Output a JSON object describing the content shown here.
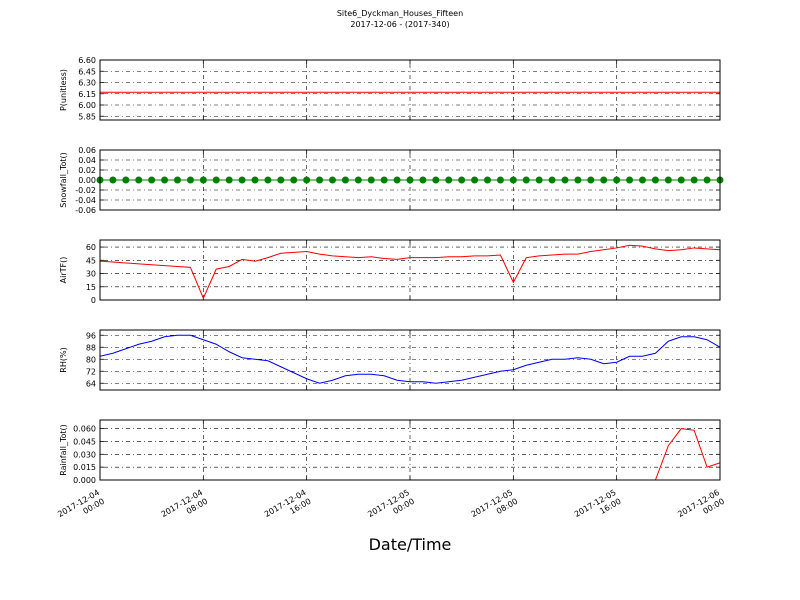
{
  "chart_data": [
    {
      "type": "line",
      "title": "Site6_Dyckman_Houses_Fifteen",
      "subtitle": "2017-12-06 - (2017-340)",
      "ylabel": "P(unitless)",
      "grid": true,
      "xlim": [
        "2017-12-04 00:00",
        "2017-12-06 00:00"
      ],
      "ylim": [
        5.8,
        6.6
      ],
      "yticks": [
        {
          "value": 5.85,
          "label": "5.85"
        },
        {
          "value": 6.0,
          "label": "6.00"
        },
        {
          "value": 6.15,
          "label": "6.15"
        },
        {
          "value": 6.3,
          "label": "6.30"
        },
        {
          "value": 6.45,
          "label": "6.45"
        },
        {
          "value": 6.6,
          "label": "6.60"
        }
      ],
      "x": [
        "2017-12-04 00:00",
        "2017-12-04 01:00",
        "2017-12-04 02:00",
        "2017-12-04 03:00",
        "2017-12-04 04:00",
        "2017-12-04 05:00",
        "2017-12-04 06:00",
        "2017-12-04 07:00",
        "2017-12-04 08:00",
        "2017-12-04 09:00",
        "2017-12-04 10:00",
        "2017-12-04 11:00",
        "2017-12-04 12:00",
        "2017-12-04 13:00",
        "2017-12-04 14:00",
        "2017-12-04 15:00",
        "2017-12-04 16:00",
        "2017-12-04 17:00",
        "2017-12-04 18:00",
        "2017-12-04 19:00",
        "2017-12-04 20:00",
        "2017-12-04 21:00",
        "2017-12-04 22:00",
        "2017-12-04 23:00",
        "2017-12-05 00:00",
        "2017-12-05 01:00",
        "2017-12-05 02:00",
        "2017-12-05 03:00",
        "2017-12-05 04:00",
        "2017-12-05 05:00",
        "2017-12-05 06:00",
        "2017-12-05 07:00",
        "2017-12-05 08:00",
        "2017-12-05 09:00",
        "2017-12-05 10:00",
        "2017-12-05 11:00",
        "2017-12-05 12:00",
        "2017-12-05 13:00",
        "2017-12-05 14:00",
        "2017-12-05 15:00",
        "2017-12-05 16:00",
        "2017-12-05 17:00",
        "2017-12-05 18:00",
        "2017-12-05 19:00",
        "2017-12-05 20:00",
        "2017-12-05 21:00",
        "2017-12-05 22:00",
        "2017-12-05 23:00",
        "2017-12-06 00:00"
      ],
      "series": [
        {
          "color": "#ff0000",
          "values": [
            6.17,
            6.17,
            6.17,
            6.17,
            6.17,
            6.17,
            6.17,
            6.17,
            6.17,
            6.17,
            6.17,
            6.17,
            6.17,
            6.17,
            6.17,
            6.17,
            6.17,
            6.17,
            6.17,
            6.17,
            6.17,
            6.17,
            6.17,
            6.17,
            6.17,
            6.17,
            6.17,
            6.17,
            6.17,
            6.17,
            6.17,
            6.17,
            6.17,
            6.17,
            6.17,
            6.17,
            6.17,
            6.17,
            6.17,
            6.17,
            6.17,
            6.17,
            6.17,
            6.17,
            6.17,
            6.17,
            6.17,
            6.17,
            6.17
          ]
        }
      ]
    },
    {
      "type": "line",
      "ylabel": "Snowfall_Tot()",
      "grid": true,
      "marker": true,
      "xlim": [
        "2017-12-04 00:00",
        "2017-12-06 00:00"
      ],
      "ylim": [
        -0.06,
        0.06
      ],
      "yticks": [
        -0.06,
        -0.04,
        -0.02,
        {
          "value": 0,
          "label": "0.00"
        },
        0.02,
        0.04,
        0.06
      ],
      "x": [
        "2017-12-04 00:00",
        "2017-12-04 01:00",
        "2017-12-04 02:00",
        "2017-12-04 03:00",
        "2017-12-04 04:00",
        "2017-12-04 05:00",
        "2017-12-04 06:00",
        "2017-12-04 07:00",
        "2017-12-04 08:00",
        "2017-12-04 09:00",
        "2017-12-04 10:00",
        "2017-12-04 11:00",
        "2017-12-04 12:00",
        "2017-12-04 13:00",
        "2017-12-04 14:00",
        "2017-12-04 15:00",
        "2017-12-04 16:00",
        "2017-12-04 17:00",
        "2017-12-04 18:00",
        "2017-12-04 19:00",
        "2017-12-04 20:00",
        "2017-12-04 21:00",
        "2017-12-04 22:00",
        "2017-12-04 23:00",
        "2017-12-05 00:00",
        "2017-12-05 01:00",
        "2017-12-05 02:00",
        "2017-12-05 03:00",
        "2017-12-05 04:00",
        "2017-12-05 05:00",
        "2017-12-05 06:00",
        "2017-12-05 07:00",
        "2017-12-05 08:00",
        "2017-12-05 09:00",
        "2017-12-05 10:00",
        "2017-12-05 11:00",
        "2017-12-05 12:00",
        "2017-12-05 13:00",
        "2017-12-05 14:00",
        "2017-12-05 15:00",
        "2017-12-05 16:00",
        "2017-12-05 17:00",
        "2017-12-05 18:00",
        "2017-12-05 19:00",
        "2017-12-05 20:00",
        "2017-12-05 21:00",
        "2017-12-05 22:00",
        "2017-12-05 23:00",
        "2017-12-06 00:00"
      ],
      "series": [
        {
          "color": "#008000",
          "values": [
            0,
            0,
            0,
            0,
            0,
            0,
            0,
            0,
            0,
            0,
            0,
            0,
            0,
            0,
            0,
            0,
            0,
            0,
            0,
            0,
            0,
            0,
            0,
            0,
            0,
            0,
            0,
            0,
            0,
            0,
            0,
            0,
            0,
            0,
            0,
            0,
            0,
            0,
            0,
            0,
            0,
            0,
            0,
            0,
            0,
            0,
            0,
            0,
            0
          ]
        }
      ]
    },
    {
      "type": "line",
      "ylabel": "AirTF()",
      "grid": true,
      "xlim": [
        "2017-12-04 00:00",
        "2017-12-06 00:00"
      ],
      "ylim": [
        0,
        68
      ],
      "yticks": [
        0,
        15,
        30,
        45,
        60
      ],
      "x": [
        "2017-12-04 00:00",
        "2017-12-04 01:00",
        "2017-12-04 02:00",
        "2017-12-04 03:00",
        "2017-12-04 04:00",
        "2017-12-04 05:00",
        "2017-12-04 06:00",
        "2017-12-04 07:00",
        "2017-12-04 08:00",
        "2017-12-04 09:00",
        "2017-12-04 10:00",
        "2017-12-04 11:00",
        "2017-12-04 12:00",
        "2017-12-04 13:00",
        "2017-12-04 14:00",
        "2017-12-04 15:00",
        "2017-12-04 16:00",
        "2017-12-04 17:00",
        "2017-12-04 18:00",
        "2017-12-04 19:00",
        "2017-12-04 20:00",
        "2017-12-04 21:00",
        "2017-12-04 22:00",
        "2017-12-04 23:00",
        "2017-12-05 00:00",
        "2017-12-05 01:00",
        "2017-12-05 02:00",
        "2017-12-05 03:00",
        "2017-12-05 04:00",
        "2017-12-05 05:00",
        "2017-12-05 06:00",
        "2017-12-05 07:00",
        "2017-12-05 08:00",
        "2017-12-05 09:00",
        "2017-12-05 10:00",
        "2017-12-05 11:00",
        "2017-12-05 12:00",
        "2017-12-05 13:00",
        "2017-12-05 14:00",
        "2017-12-05 15:00",
        "2017-12-05 16:00",
        "2017-12-05 17:00",
        "2017-12-05 18:00",
        "2017-12-05 19:00",
        "2017-12-05 20:00",
        "2017-12-05 21:00",
        "2017-12-05 22:00",
        "2017-12-05 23:00",
        "2017-12-06 00:00"
      ],
      "series": [
        {
          "color": "#ff0000",
          "values": [
            44,
            43,
            42,
            41,
            40,
            39,
            38,
            37,
            2,
            35,
            38,
            46,
            44,
            48,
            53,
            54,
            55,
            52,
            50,
            49,
            48,
            49,
            47,
            46,
            48,
            48,
            48,
            49,
            49,
            50,
            50,
            51,
            20,
            48,
            50,
            51,
            52,
            52,
            55,
            57,
            59,
            62,
            61,
            58,
            56,
            57,
            59,
            58,
            57
          ]
        }
      ]
    },
    {
      "type": "line",
      "ylabel": "RH(%)",
      "grid": true,
      "xlim": [
        "2017-12-04 00:00",
        "2017-12-06 00:00"
      ],
      "ylim": [
        59.5,
        99.5
      ],
      "yticks": [
        64,
        72,
        80,
        88,
        96
      ],
      "x": [
        "2017-12-04 00:00",
        "2017-12-04 01:00",
        "2017-12-04 02:00",
        "2017-12-04 03:00",
        "2017-12-04 04:00",
        "2017-12-04 05:00",
        "2017-12-04 06:00",
        "2017-12-04 07:00",
        "2017-12-04 08:00",
        "2017-12-04 09:00",
        "2017-12-04 10:00",
        "2017-12-04 11:00",
        "2017-12-04 12:00",
        "2017-12-04 13:00",
        "2017-12-04 14:00",
        "2017-12-04 15:00",
        "2017-12-04 16:00",
        "2017-12-04 17:00",
        "2017-12-04 18:00",
        "2017-12-04 19:00",
        "2017-12-04 20:00",
        "2017-12-04 21:00",
        "2017-12-04 22:00",
        "2017-12-04 23:00",
        "2017-12-05 00:00",
        "2017-12-05 01:00",
        "2017-12-05 02:00",
        "2017-12-05 03:00",
        "2017-12-05 04:00",
        "2017-12-05 05:00",
        "2017-12-05 06:00",
        "2017-12-05 07:00",
        "2017-12-05 08:00",
        "2017-12-05 09:00",
        "2017-12-05 10:00",
        "2017-12-05 11:00",
        "2017-12-05 12:00",
        "2017-12-05 13:00",
        "2017-12-05 14:00",
        "2017-12-05 15:00",
        "2017-12-05 16:00",
        "2017-12-05 17:00",
        "2017-12-05 18:00",
        "2017-12-05 19:00",
        "2017-12-05 20:00",
        "2017-12-05 21:00",
        "2017-12-05 22:00",
        "2017-12-05 23:00",
        "2017-12-06 00:00"
      ],
      "series": [
        {
          "color": "#0000ff",
          "values": [
            82,
            84,
            87,
            90,
            92,
            95,
            96,
            96,
            93,
            90,
            85,
            81,
            80,
            79,
            75,
            71,
            67,
            64,
            66,
            69,
            70,
            70,
            69,
            66,
            65,
            65,
            64,
            65,
            66,
            68,
            70,
            72,
            73,
            76,
            78,
            80,
            80,
            81,
            80,
            77,
            78,
            82,
            82,
            84,
            92,
            95,
            95,
            93,
            88
          ]
        }
      ]
    },
    {
      "type": "line",
      "ylabel": "Rainfall_Tot()",
      "xlabel": "Date/Time",
      "grid": true,
      "xlim": [
        "2017-12-04 00:00",
        "2017-12-06 00:00"
      ],
      "ylim": [
        0,
        0.07
      ],
      "yticks": [
        {
          "value": 0,
          "label": "0.000"
        },
        {
          "value": 0.015,
          "label": "0.015"
        },
        {
          "value": 0.03,
          "label": "0.030"
        },
        {
          "value": 0.045,
          "label": "0.045"
        },
        {
          "value": 0.06,
          "label": "0.060"
        }
      ],
      "xticks": [
        {
          "value": "2017-12-04 00:00",
          "label": "2017-12-04\n00:00"
        },
        {
          "value": "2017-12-04 08:00",
          "label": "2017-12-04\n08:00"
        },
        {
          "value": "2017-12-04 16:00",
          "label": "2017-12-04\n16:00"
        },
        {
          "value": "2017-12-05 00:00",
          "label": "2017-12-05\n00:00"
        },
        {
          "value": "2017-12-05 08:00",
          "label": "2017-12-05\n08:00"
        },
        {
          "value": "2017-12-05 16:00",
          "label": "2017-12-05\n16:00"
        },
        {
          "value": "2017-12-06 00:00",
          "label": "2017-12-06\n00:00"
        }
      ],
      "x": [
        "2017-12-04 00:00",
        "2017-12-04 01:00",
        "2017-12-04 02:00",
        "2017-12-04 03:00",
        "2017-12-04 04:00",
        "2017-12-04 05:00",
        "2017-12-04 06:00",
        "2017-12-04 07:00",
        "2017-12-04 08:00",
        "2017-12-04 09:00",
        "2017-12-04 10:00",
        "2017-12-04 11:00",
        "2017-12-04 12:00",
        "2017-12-04 13:00",
        "2017-12-04 14:00",
        "2017-12-04 15:00",
        "2017-12-04 16:00",
        "2017-12-04 17:00",
        "2017-12-04 18:00",
        "2017-12-04 19:00",
        "2017-12-04 20:00",
        "2017-12-04 21:00",
        "2017-12-04 22:00",
        "2017-12-04 23:00",
        "2017-12-05 00:00",
        "2017-12-05 01:00",
        "2017-12-05 02:00",
        "2017-12-05 03:00",
        "2017-12-05 04:00",
        "2017-12-05 05:00",
        "2017-12-05 06:00",
        "2017-12-05 07:00",
        "2017-12-05 08:00",
        "2017-12-05 09:00",
        "2017-12-05 10:00",
        "2017-12-05 11:00",
        "2017-12-05 12:00",
        "2017-12-05 13:00",
        "2017-12-05 14:00",
        "2017-12-05 15:00",
        "2017-12-05 16:00",
        "2017-12-05 17:00",
        "2017-12-05 18:00",
        "2017-12-05 19:00",
        "2017-12-05 20:00",
        "2017-12-05 21:00",
        "2017-12-05 22:00",
        "2017-12-05 23:00",
        "2017-12-06 00:00"
      ],
      "series": [
        {
          "color": "#ff0000",
          "values": [
            0,
            0,
            0,
            0,
            0,
            0,
            0,
            0,
            0,
            0,
            0,
            0,
            0,
            0,
            0,
            0,
            0,
            0,
            0,
            0,
            0,
            0,
            0,
            0,
            0,
            0,
            0,
            0,
            0,
            0,
            0,
            0,
            0,
            0,
            0,
            0,
            0,
            0,
            0,
            0,
            0,
            0,
            0,
            0,
            0.04,
            0.06,
            0.058,
            0.015,
            0.02
          ]
        }
      ]
    }
  ]
}
